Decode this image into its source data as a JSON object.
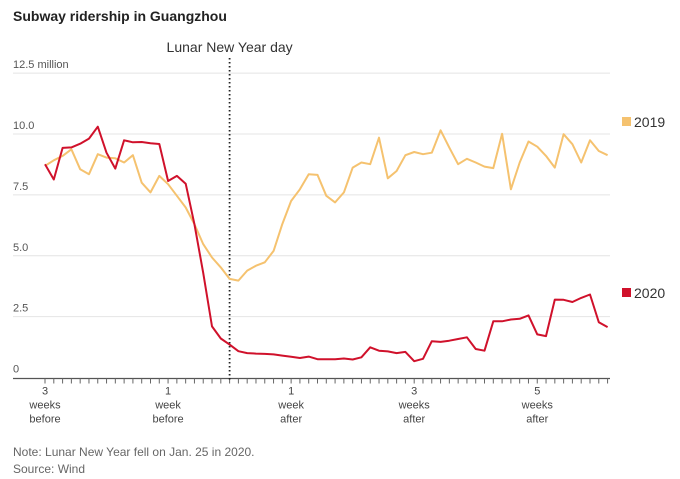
{
  "chart_data": {
    "type": "line",
    "title": "Subway ridership in Guangzhou",
    "note": "Note: Lunar New Year fell on Jan. 25 in 2020.",
    "source": "Source: Wind",
    "annotation": "Lunar New Year day",
    "ylabel_unit": "12.5 million",
    "ylim": [
      0,
      12.5
    ],
    "y_ticks": [
      "0",
      "2.5",
      "5.0",
      "7.5",
      "10.0",
      "12.5 million"
    ],
    "y_tick_values": [
      0,
      2.5,
      5,
      7.5,
      10,
      12.5
    ],
    "xlim": [
      -21,
      43
    ],
    "x_ticks": [
      {
        "day": -21,
        "lines": [
          "3",
          "weeks",
          "before"
        ]
      },
      {
        "day": -7,
        "lines": [
          "1",
          "week",
          "before"
        ]
      },
      {
        "day": 7,
        "lines": [
          "1",
          "week",
          "after"
        ]
      },
      {
        "day": 21,
        "lines": [
          "3",
          "weeks",
          "after"
        ]
      },
      {
        "day": 35,
        "lines": [
          "5",
          "weeks",
          "after"
        ]
      }
    ],
    "x_units": "days relative to Lunar New Year day",
    "grid": true,
    "legend_placement": "right, at line ends",
    "series": [
      {
        "name": "2019",
        "color": "#f5c26f",
        "x_start": -21,
        "values": [
          8.69,
          8.92,
          9.1,
          9.37,
          8.55,
          8.35,
          9.17,
          9.03,
          9.0,
          8.83,
          9.13,
          8.0,
          7.6,
          8.28,
          7.94,
          7.46,
          6.98,
          6.3,
          5.48,
          4.93,
          4.52,
          4.05,
          3.98,
          4.39,
          4.59,
          4.73,
          5.2,
          6.3,
          7.25,
          7.73,
          8.35,
          8.32,
          7.46,
          7.19,
          7.6,
          8.62,
          8.83,
          8.76,
          9.85,
          8.18,
          8.48,
          9.13,
          9.26,
          9.17,
          9.23,
          10.15,
          9.44,
          8.76,
          8.98,
          8.83,
          8.66,
          8.6,
          10.01,
          7.73,
          8.83,
          9.69,
          9.48,
          9.1,
          8.62,
          9.99,
          9.58,
          8.83,
          9.74,
          9.3,
          9.13
        ]
      },
      {
        "name": "2020",
        "color": "#d0112b",
        "x_start": -21,
        "values": [
          8.76,
          8.13,
          9.43,
          9.45,
          9.6,
          9.81,
          10.3,
          9.23,
          8.58,
          9.74,
          9.66,
          9.67,
          9.62,
          9.59,
          8.07,
          8.28,
          7.96,
          6.3,
          4.3,
          2.1,
          1.6,
          1.35,
          1.08,
          1.0,
          0.98,
          0.97,
          0.95,
          0.9,
          0.85,
          0.8,
          0.86,
          0.75,
          0.75,
          0.75,
          0.78,
          0.74,
          0.83,
          1.24,
          1.1,
          1.07,
          1.0,
          1.05,
          0.67,
          0.77,
          1.49,
          1.46,
          1.51,
          1.58,
          1.65,
          1.17,
          1.1,
          2.31,
          2.31,
          2.38,
          2.41,
          2.55,
          1.77,
          1.7,
          3.2,
          3.19,
          3.1,
          3.27,
          3.41,
          2.27,
          2.07
        ]
      }
    ]
  }
}
